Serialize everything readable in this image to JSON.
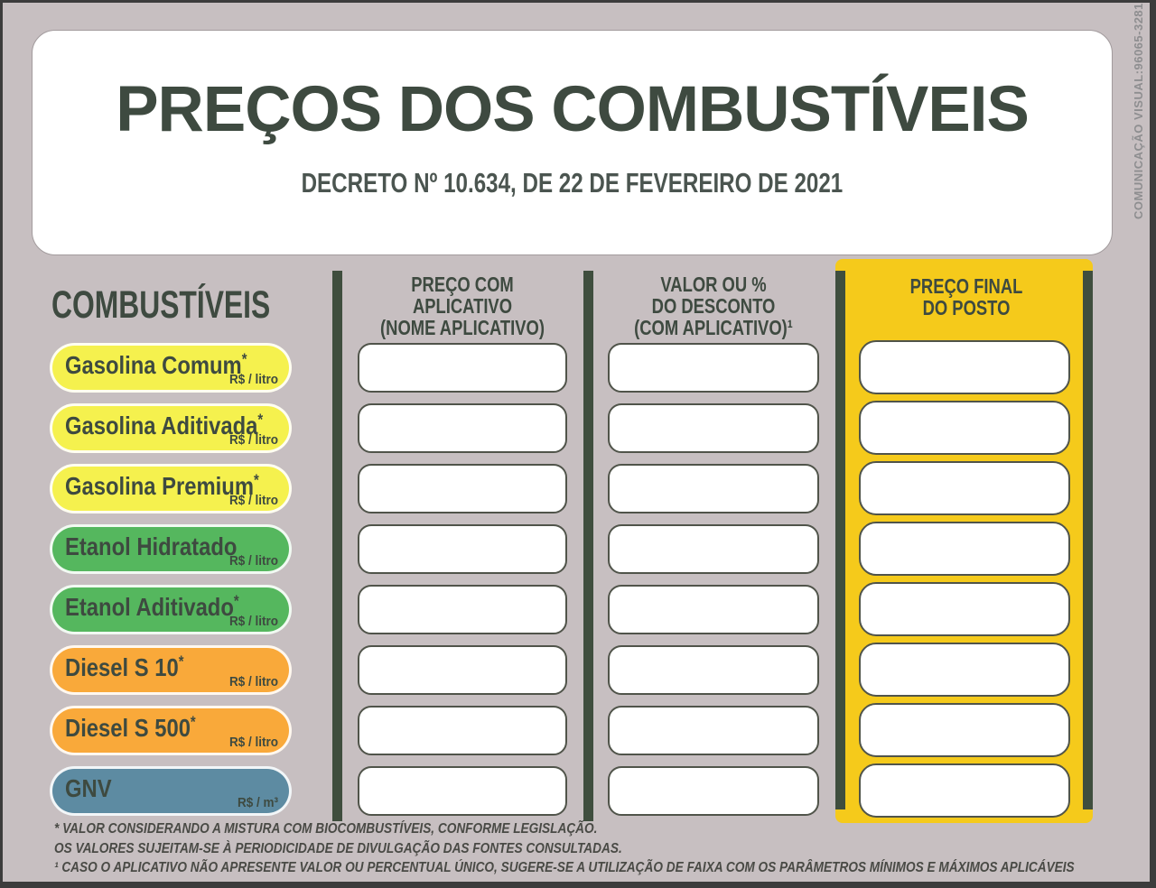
{
  "header": {
    "title": "PREÇOS DOS COMBUSTÍVEIS",
    "subtitle": "DECRETO Nº 10.634, DE 22 DE FEVEREIRO DE 2021"
  },
  "side_note": "COMUNICAÇÃO VISUAL:96065-3281",
  "fuels_header": "COMBUSTÍVEIS",
  "columns": [
    {
      "key": "preco_aplicativo",
      "lines": [
        "PREÇO COM",
        "APLICATIVO",
        "(NOME APLICATIVO)"
      ]
    },
    {
      "key": "valor_desconto",
      "lines": [
        "VALOR OU %",
        "DO DESCONTO",
        "(COM APLICATIVO)¹"
      ]
    },
    {
      "key": "preco_final",
      "lines": [
        "PREÇO FINAL",
        "DO POSTO"
      ],
      "highlighted": true
    }
  ],
  "fuels": [
    {
      "name": "Gasolina Comum",
      "asterisk": "*",
      "unit": "R$ / litro",
      "category": "gasolina"
    },
    {
      "name": "Gasolina Aditivada",
      "asterisk": "*",
      "unit": "R$ / litro",
      "category": "gasolina"
    },
    {
      "name": "Gasolina Premium",
      "asterisk": "*",
      "unit": "R$ / litro",
      "category": "gasolina"
    },
    {
      "name": "Etanol Hidratado",
      "asterisk": "",
      "unit": "R$ / litro",
      "category": "etanol"
    },
    {
      "name": "Etanol Aditivado",
      "asterisk": "*",
      "unit": "R$ / litro",
      "category": "etanol"
    },
    {
      "name": "Diesel S 10",
      "asterisk": "*",
      "unit": "R$ / litro",
      "category": "diesel"
    },
    {
      "name": "Diesel S 500",
      "asterisk": "*",
      "unit": "R$ / litro",
      "category": "diesel"
    },
    {
      "name": "GNV",
      "asterisk": "",
      "unit": "R$ / m³",
      "category": "gnv"
    }
  ],
  "price_values": {
    "preco_aplicativo": [
      "",
      "",
      "",
      "",
      "",
      "",
      "",
      ""
    ],
    "valor_desconto": [
      "",
      "",
      "",
      "",
      "",
      "",
      "",
      ""
    ],
    "preco_final": [
      "",
      "",
      "",
      "",
      "",
      "",
      "",
      ""
    ]
  },
  "footnotes": [
    "* VALOR CONSIDERANDO A MISTURA COM BIOCOMBUSTÍVEIS, CONFORME LEGISLAÇÃO.",
    "OS VALORES SUJEITAM-SE À PERIODICIDADE DE DIVULGAÇÃO DAS FONTES CONSULTADAS.",
    "¹ CASO O APLICATIVO NÃO APRESENTE VALOR OU PERCENTUAL ÚNICO, SUGERE-SE A UTILIZAÇÃO DE FAIXA COM OS PARÂMETROS MÍNIMOS E MÁXIMOS APLICÁVEIS"
  ],
  "colors": {
    "background": "#c7bfc1",
    "ink": "#3e4a40",
    "gasolina": "#f5f14e",
    "etanol": "#55b75e",
    "diesel": "#f9a93a",
    "gnv": "#5d8ba2",
    "highlight_column": "#f5ca1b",
    "divider_bar": "#3f4e3e",
    "field_border": "#50544a",
    "side_note_gray": "#8e8e90"
  }
}
